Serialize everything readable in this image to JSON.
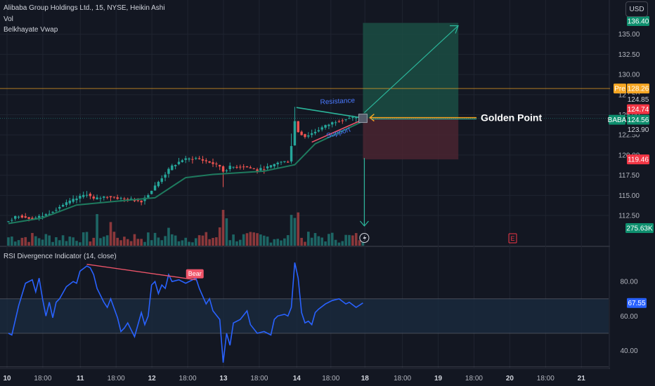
{
  "header": {
    "symbol_line": "Alibaba Group Holdings Ltd., 15, NYSE, Heikin Ashi",
    "indicator_vol": "Vol",
    "indicator_vwap": "Belkhayate Vwap",
    "currency": "USD"
  },
  "rsi_panel": {
    "title": "RSI Divergence Indicator (14, close)",
    "bear_label": "Bear"
  },
  "annotations": {
    "golden_point": "Golden Point",
    "resistance": "Resistance",
    "support": "Support",
    "event_marker": "E"
  },
  "price_labels": {
    "target": "136.40",
    "pre_tag": "Pre",
    "pre_value": "128.26",
    "upper": "124.85",
    "stop_near": "124.74",
    "symbol_tag": "BABA",
    "last": "124.56",
    "lower": "123.90",
    "stop": "119.46",
    "volume": "275.63K",
    "rsi_value": "67.55"
  },
  "colors": {
    "background": "#131722",
    "grid": "#1f2430",
    "up_candle": "#26a69a",
    "down_candle": "#ef5350",
    "vwap": "#1e7a5e",
    "rsi_line": "#2962ff",
    "rsi_band": "#1a2a3f",
    "target_zone": "#1b4d43",
    "stop_zone": "#4a2430",
    "pre_line": "#f5a623",
    "golden_line": "#f5a623",
    "arrow": "#2bb59a",
    "label_red": "#f23645",
    "label_green": "#0e8f6e"
  },
  "chart_data": [
    {
      "type": "candlestick",
      "chart_style": "Heikin Ashi",
      "symbol": "BABA",
      "interval": "15",
      "exchange": "NYSE",
      "y_axis": {
        "ylim": [
          110.5,
          137.5
        ],
        "ticks": [
          112.5,
          115.0,
          117.5,
          120.0,
          122.5,
          125.0,
          127.5,
          130.0,
          132.5,
          135.0
        ]
      },
      "x_axis": {
        "ticks": [
          "10",
          "18:00",
          "11",
          "18:00",
          "12",
          "18:00",
          "13",
          "18:00",
          "14",
          "18:00",
          "18",
          "18:00",
          "19",
          "18:00",
          "20",
          "18:00",
          "21",
          "18:00"
        ],
        "date_ticks": [
          "10",
          "11",
          "12",
          "13",
          "14",
          "18",
          "19",
          "20",
          "21"
        ]
      },
      "grid": true,
      "series_close": [
        {
          "s": 0,
          "c": 111.7
        },
        {
          "s": 4,
          "c": 112.5
        },
        {
          "s": 8,
          "c": 112.1
        },
        {
          "s": 12,
          "c": 112.6
        },
        {
          "s": 16,
          "c": 113.6
        },
        {
          "s": 20,
          "c": 114.4
        },
        {
          "s": 24,
          "c": 115.2
        },
        {
          "s": 26,
          "c": 114.5
        },
        {
          "s": 30,
          "c": 114.9
        },
        {
          "s": 34,
          "c": 114.6
        },
        {
          "s": 40,
          "c": 114.3
        },
        {
          "s": 43,
          "c": 115.6
        },
        {
          "s": 46,
          "c": 117.2
        },
        {
          "s": 49,
          "c": 118.6
        },
        {
          "s": 52,
          "c": 119.4
        },
        {
          "s": 56,
          "c": 119.6
        },
        {
          "s": 60,
          "c": 119.1
        },
        {
          "s": 63,
          "c": 118.6
        },
        {
          "s": 64,
          "c": 118.0
        },
        {
          "s": 66,
          "c": 118.5
        },
        {
          "s": 70,
          "c": 118.6
        },
        {
          "s": 74,
          "c": 118.1
        },
        {
          "s": 78,
          "c": 118.6
        },
        {
          "s": 80,
          "c": 119.1
        },
        {
          "s": 83,
          "c": 119.2
        },
        {
          "s": 84,
          "c": 121.2
        },
        {
          "s": 85,
          "c": 124.2
        },
        {
          "s": 86,
          "c": 122.9
        },
        {
          "s": 88,
          "c": 122.3
        },
        {
          "s": 90,
          "c": 122.7
        },
        {
          "s": 93,
          "c": 123.4
        },
        {
          "s": 97,
          "c": 124.2
        },
        {
          "s": 101,
          "c": 124.6
        },
        {
          "s": 104,
          "c": 124.56
        }
      ],
      "vwap": [
        {
          "s": 0,
          "y": 111.5
        },
        {
          "s": 10,
          "y": 112.2
        },
        {
          "s": 20,
          "y": 113.8
        },
        {
          "s": 30,
          "y": 114.2
        },
        {
          "s": 43,
          "y": 114.7
        },
        {
          "s": 52,
          "y": 117.2
        },
        {
          "s": 60,
          "y": 117.6
        },
        {
          "s": 75,
          "y": 118.0
        },
        {
          "s": 84,
          "y": 118.8
        },
        {
          "s": 90,
          "y": 121.4
        },
        {
          "s": 104,
          "y": 124.2
        }
      ],
      "volume_last": "275.63K",
      "long_position": {
        "target": 136.4,
        "entry": 124.56,
        "stop": 119.46
      },
      "horizontal_levels": {
        "pre_market": 128.26,
        "golden_point": 124.56
      },
      "annotations": [
        "Resistance",
        "Support",
        "Golden Point",
        "E"
      ]
    },
    {
      "type": "line",
      "title": "RSI Divergence Indicator (14, close)",
      "ylim": [
        30,
        100
      ],
      "y_ticks": [
        40.0,
        60.0,
        80.0
      ],
      "band": [
        50,
        70
      ],
      "last_value": 67.55,
      "values": [
        {
          "s": 0,
          "v": 50
        },
        {
          "s": 1,
          "v": 49
        },
        {
          "s": 3,
          "v": 66
        },
        {
          "s": 5,
          "v": 79
        },
        {
          "s": 7,
          "v": 81
        },
        {
          "s": 8,
          "v": 74
        },
        {
          "s": 9,
          "v": 82
        },
        {
          "s": 10,
          "v": 70
        },
        {
          "s": 11,
          "v": 60
        },
        {
          "s": 12,
          "v": 68
        },
        {
          "s": 13,
          "v": 59
        },
        {
          "s": 14,
          "v": 68
        },
        {
          "s": 15,
          "v": 70
        },
        {
          "s": 17,
          "v": 77
        },
        {
          "s": 19,
          "v": 80
        },
        {
          "s": 20,
          "v": 79
        },
        {
          "s": 21,
          "v": 86
        },
        {
          "s": 23,
          "v": 89
        },
        {
          "s": 24,
          "v": 88
        },
        {
          "s": 25,
          "v": 84
        },
        {
          "s": 26,
          "v": 76
        },
        {
          "s": 28,
          "v": 68
        },
        {
          "s": 29,
          "v": 65
        },
        {
          "s": 30,
          "v": 70
        },
        {
          "s": 32,
          "v": 59
        },
        {
          "s": 33,
          "v": 51
        },
        {
          "s": 34,
          "v": 53
        },
        {
          "s": 35,
          "v": 56
        },
        {
          "s": 36,
          "v": 52
        },
        {
          "s": 37,
          "v": 48
        },
        {
          "s": 39,
          "v": 62
        },
        {
          "s": 40,
          "v": 55
        },
        {
          "s": 41,
          "v": 60
        },
        {
          "s": 42,
          "v": 78
        },
        {
          "s": 43,
          "v": 80
        },
        {
          "s": 44,
          "v": 73
        },
        {
          "s": 45,
          "v": 78
        },
        {
          "s": 46,
          "v": 76
        },
        {
          "s": 47,
          "v": 84
        },
        {
          "s": 48,
          "v": 80
        },
        {
          "s": 50,
          "v": 81
        },
        {
          "s": 52,
          "v": 79
        },
        {
          "s": 55,
          "v": 82
        },
        {
          "s": 56,
          "v": 76
        },
        {
          "s": 58,
          "v": 67
        },
        {
          "s": 59,
          "v": 70
        },
        {
          "s": 60,
          "v": 63
        },
        {
          "s": 62,
          "v": 58
        },
        {
          "s": 63,
          "v": 33
        },
        {
          "s": 64,
          "v": 50
        },
        {
          "s": 65,
          "v": 43
        },
        {
          "s": 66,
          "v": 56
        },
        {
          "s": 68,
          "v": 58
        },
        {
          "s": 70,
          "v": 63
        },
        {
          "s": 71,
          "v": 55
        },
        {
          "s": 73,
          "v": 50
        },
        {
          "s": 75,
          "v": 51
        },
        {
          "s": 77,
          "v": 49
        },
        {
          "s": 78,
          "v": 58
        },
        {
          "s": 79,
          "v": 60
        },
        {
          "s": 81,
          "v": 61
        },
        {
          "s": 82,
          "v": 60
        },
        {
          "s": 83,
          "v": 65
        },
        {
          "s": 84,
          "v": 91
        },
        {
          "s": 85,
          "v": 82
        },
        {
          "s": 86,
          "v": 62
        },
        {
          "s": 87,
          "v": 56
        },
        {
          "s": 88,
          "v": 57
        },
        {
          "s": 89,
          "v": 55
        },
        {
          "s": 90,
          "v": 62
        },
        {
          "s": 91,
          "v": 64
        },
        {
          "s": 93,
          "v": 67
        },
        {
          "s": 95,
          "v": 69
        },
        {
          "s": 97,
          "v": 70
        },
        {
          "s": 99,
          "v": 67
        },
        {
          "s": 100,
          "v": 68
        },
        {
          "s": 102,
          "v": 65
        },
        {
          "s": 104,
          "v": 67.55
        }
      ],
      "divergence": {
        "from_s": 23,
        "from_v": 90,
        "to_s": 55,
        "to_v": 81,
        "label": "Bear"
      }
    }
  ]
}
